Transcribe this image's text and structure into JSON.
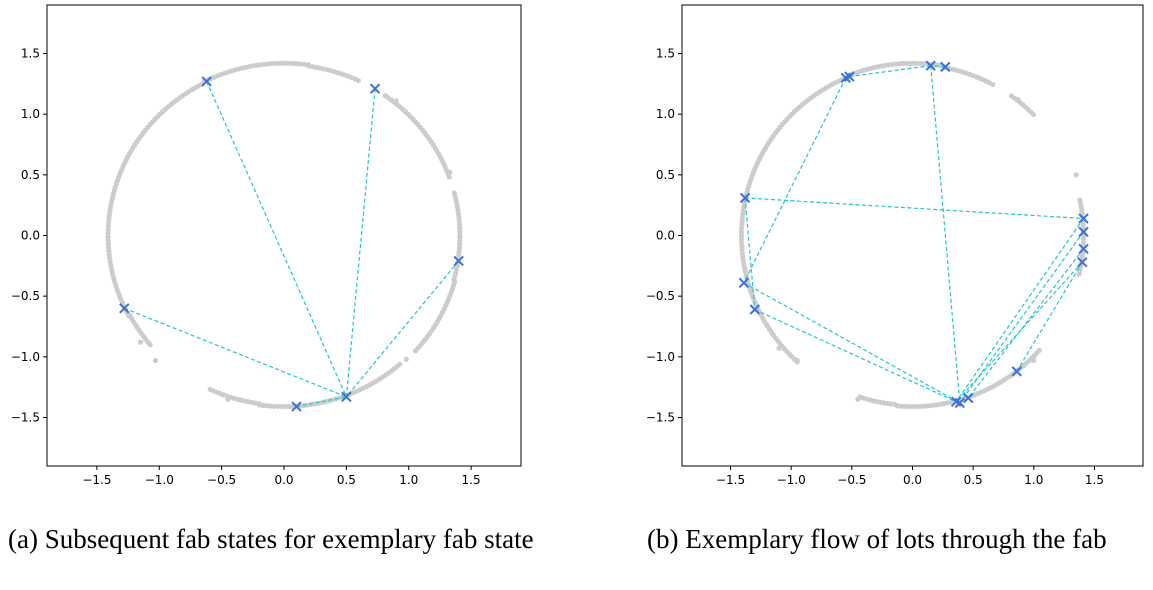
{
  "chart_data": [
    {
      "type": "scatter",
      "caption": "(a) Subsequent fab states for exemplary fab state",
      "xlim": [
        -1.9,
        1.9
      ],
      "ylim": [
        -1.9,
        1.9
      ],
      "xticks": [
        "-1.5",
        "-1.0",
        "-0.5",
        "0.0",
        "0.5",
        "1.0",
        "1.5"
      ],
      "yticks": [
        "1.5",
        "1.0",
        "0.5",
        "0.0",
        "-0.5",
        "-1.0",
        "-1.5"
      ],
      "grid": false,
      "colors": {
        "background_points": "#cccccc",
        "markers": "#3f6fdc",
        "links": "#1ec8cc"
      },
      "background_arcs": [
        {
          "from_deg": 20,
          "to_deg": 55,
          "r": 1.41
        },
        {
          "from_deg": 65,
          "to_deg": 82,
          "r": 1.41
        },
        {
          "from_deg": 82,
          "to_deg": 118,
          "r": 1.42
        },
        {
          "from_deg": 118,
          "to_deg": 148,
          "r": 1.41
        },
        {
          "from_deg": 148,
          "to_deg": 208,
          "r": 1.41
        },
        {
          "from_deg": 208,
          "to_deg": 220,
          "r": 1.4
        },
        {
          "from_deg": 245,
          "to_deg": 262,
          "r": 1.4
        },
        {
          "from_deg": 262,
          "to_deg": 312,
          "r": 1.41
        },
        {
          "from_deg": 318,
          "to_deg": 345,
          "r": 1.42
        },
        {
          "from_deg": 345,
          "to_deg": 360,
          "r": 1.41
        },
        {
          "from_deg": 0,
          "to_deg": 15,
          "r": 1.41
        }
      ],
      "outliers": [
        [
          0.9,
          1.11
        ],
        [
          -1.03,
          -1.03
        ],
        [
          -0.45,
          -1.35
        ],
        [
          0.98,
          -1.02
        ],
        [
          1.33,
          0.52
        ],
        [
          -1.15,
          -0.88
        ]
      ],
      "markers": [
        [
          -0.62,
          1.27
        ],
        [
          0.73,
          1.21
        ],
        [
          1.4,
          -0.21
        ],
        [
          -1.28,
          -0.6
        ],
        [
          0.5,
          -1.33
        ],
        [
          0.1,
          -1.41
        ]
      ],
      "links": [
        [
          0,
          4
        ],
        [
          1,
          4
        ],
        [
          2,
          4
        ],
        [
          3,
          4
        ],
        [
          5,
          4
        ]
      ]
    },
    {
      "type": "scatter",
      "caption": "(b) Exemplary flow of lots through the fab",
      "xlim": [
        -1.9,
        1.9
      ],
      "ylim": [
        -1.9,
        1.9
      ],
      "xticks": [
        "-1.5",
        "-1.0",
        "-0.5",
        "0.0",
        "0.5",
        "1.0",
        "1.5"
      ],
      "yticks": [
        "1.5",
        "1.0",
        "0.5",
        "0.0",
        "-0.5",
        "-1.0",
        "-1.5"
      ],
      "grid": false,
      "colors": {
        "background_points": "#cccccc",
        "markers": "#3f6fdc",
        "links": "#1ec8cc"
      },
      "background_arcs": [
        {
          "from_deg": 45,
          "to_deg": 55,
          "r": 1.41
        },
        {
          "from_deg": 62,
          "to_deg": 80,
          "r": 1.41
        },
        {
          "from_deg": 80,
          "to_deg": 112,
          "r": 1.42
        },
        {
          "from_deg": 112,
          "to_deg": 150,
          "r": 1.41
        },
        {
          "from_deg": 150,
          "to_deg": 212,
          "r": 1.41
        },
        {
          "from_deg": 212,
          "to_deg": 228,
          "r": 1.41
        },
        {
          "from_deg": 252,
          "to_deg": 265,
          "r": 1.4
        },
        {
          "from_deg": 265,
          "to_deg": 318,
          "r": 1.41
        },
        {
          "from_deg": 347,
          "to_deg": 360,
          "r": 1.41
        },
        {
          "from_deg": 0,
          "to_deg": 13,
          "r": 1.41
        }
      ],
      "outliers": [
        [
          0.87,
          1.12
        ],
        [
          -0.95,
          -1.03
        ],
        [
          -0.45,
          -1.35
        ],
        [
          1.0,
          -1.03
        ],
        [
          1.35,
          0.5
        ],
        [
          -1.1,
          -0.93
        ]
      ],
      "markers": [
        [
          -0.55,
          1.3
        ],
        [
          -0.52,
          1.31
        ],
        [
          0.15,
          1.4
        ],
        [
          0.27,
          1.39
        ],
        [
          -1.38,
          0.31
        ],
        [
          -1.39,
          -0.39
        ],
        [
          -1.3,
          -0.61
        ],
        [
          1.41,
          0.14
        ],
        [
          1.41,
          0.03
        ],
        [
          1.41,
          -0.11
        ],
        [
          1.4,
          -0.22
        ],
        [
          0.86,
          -1.12
        ],
        [
          0.36,
          -1.37
        ],
        [
          0.39,
          -1.38
        ],
        [
          0.46,
          -1.34
        ]
      ],
      "links": [
        [
          0,
          5
        ],
        [
          1,
          2
        ],
        [
          2,
          13
        ],
        [
          3,
          2
        ],
        [
          4,
          7
        ],
        [
          4,
          6
        ],
        [
          5,
          13
        ],
        [
          6,
          12
        ],
        [
          7,
          12
        ],
        [
          8,
          13
        ],
        [
          9,
          14
        ],
        [
          10,
          11
        ],
        [
          10,
          12
        ]
      ]
    }
  ]
}
